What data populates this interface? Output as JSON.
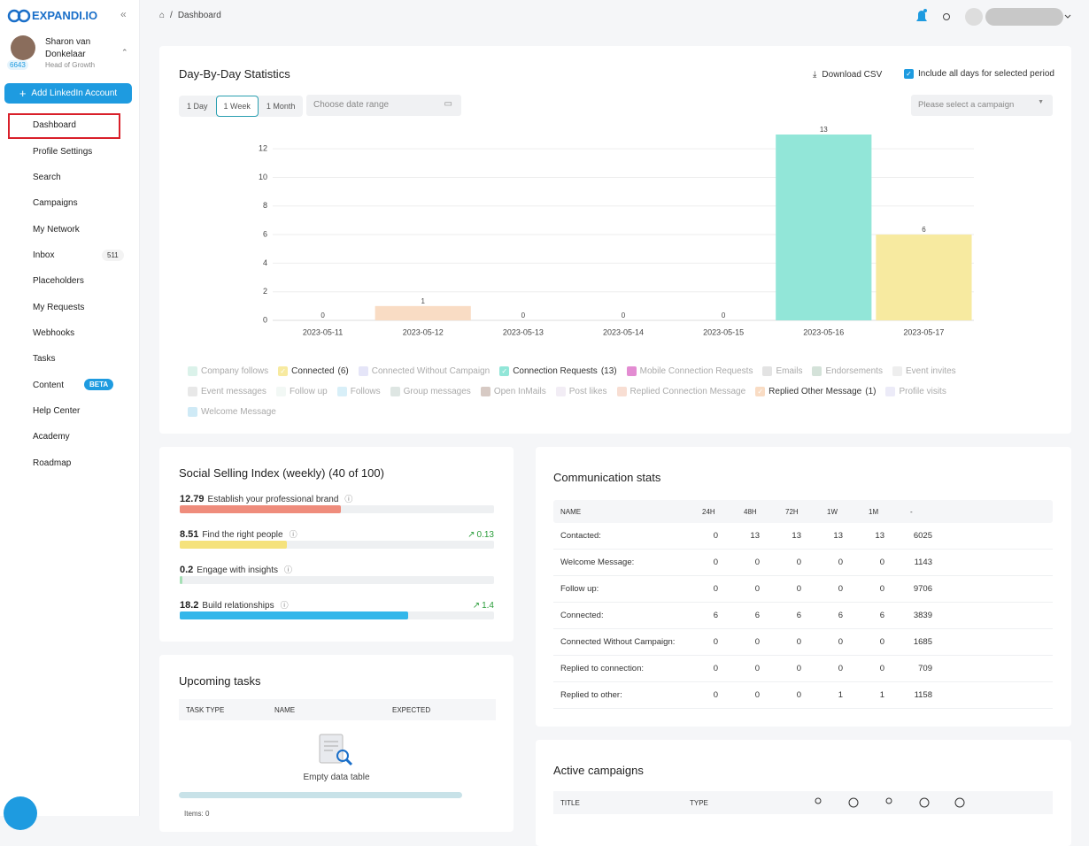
{
  "sidebar": {
    "logo": "EXPANDI.IO",
    "user": {
      "name": "Sharon van Donkelaar",
      "connections": "6643",
      "role": "Head of Growth"
    },
    "add_button": "Add LinkedIn Account",
    "nav": [
      {
        "label": "Dashboard"
      },
      {
        "label": "Profile Settings"
      },
      {
        "label": "Search"
      },
      {
        "label": "Campaigns"
      },
      {
        "label": "My Network"
      },
      {
        "label": "Inbox",
        "badge": "511"
      },
      {
        "label": "Placeholders"
      },
      {
        "label": "My Requests"
      },
      {
        "label": "Webhooks"
      },
      {
        "label": "Tasks"
      },
      {
        "label": "Content",
        "badge": "BETA"
      },
      {
        "label": "Help Center"
      },
      {
        "label": "Academy"
      },
      {
        "label": "Roadmap"
      }
    ]
  },
  "breadcrumb": {
    "current": "Dashboard"
  },
  "stats": {
    "title": "Day-By-Day Statistics",
    "download": "Download CSV",
    "include_all": "Include all days for selected period",
    "ranges": [
      "1 Day",
      "1 Week",
      "1 Month"
    ],
    "selected_range_index": 1,
    "date_placeholder": "Choose date range",
    "campaign_placeholder": "Please select a campaign"
  },
  "chart_data": {
    "type": "bar",
    "stacked": true,
    "categories": [
      "2023-05-11",
      "2023-05-12",
      "2023-05-13",
      "2023-05-14",
      "2023-05-15",
      "2023-05-16",
      "2023-05-17"
    ],
    "ylim": [
      0,
      13
    ],
    "yticks": [
      0,
      2,
      4,
      6,
      8,
      10,
      12
    ],
    "grid": true,
    "totals": [
      0,
      1,
      0,
      0,
      0,
      13,
      6
    ],
    "series": [
      {
        "name": "Company follows",
        "color": "#cfeee3"
      },
      {
        "name": "Connected",
        "count": "(6)",
        "color": "#f7eaa0",
        "values": [
          0,
          0,
          0,
          0,
          0,
          0,
          6
        ]
      },
      {
        "name": "Connected Without Campaign",
        "color": "#dcdcf5"
      },
      {
        "name": "Connection Requests",
        "count": "(13)",
        "color": "#92e6d8",
        "values": [
          0,
          0,
          0,
          0,
          0,
          13,
          0
        ]
      },
      {
        "name": "Mobile Connection Requests",
        "color": "#d966c3"
      },
      {
        "name": "Emails",
        "color": "#d9d9d9"
      },
      {
        "name": "Endorsements",
        "color": "#c5d8cc"
      },
      {
        "name": "Event invites",
        "color": "#e8e8e8"
      },
      {
        "name": "Event messages",
        "color": "#e0e0e0"
      },
      {
        "name": "Follow up",
        "color": "#eef6f2"
      },
      {
        "name": "Follows",
        "color": "#cbeaf5"
      },
      {
        "name": "Group messages",
        "color": "#d3ddda"
      },
      {
        "name": "Open InMails",
        "color": "#c9b8b0"
      },
      {
        "name": "Post likes",
        "color": "#ede7f2"
      },
      {
        "name": "Replied Connection Message",
        "color": "#f6d3c4"
      },
      {
        "name": "Replied Other Message",
        "count": "(1)",
        "color": "#f9dcc4",
        "values": [
          0,
          1,
          0,
          0,
          0,
          0,
          0
        ]
      },
      {
        "name": "Profile visits",
        "color": "#e6e4f5"
      },
      {
        "name": "Welcome Message",
        "color": "#bfe3f3"
      }
    ]
  },
  "ssi": {
    "title": "Social Selling Index (weekly) (40 of 100)",
    "xlim": [
      0,
      25
    ],
    "items": [
      {
        "value": 12.79,
        "label": "Establish your professional brand",
        "color": "#ef8c7c"
      },
      {
        "value": 8.51,
        "label": "Find the right people",
        "trend": "0.13",
        "color": "#f5e27c"
      },
      {
        "value": 0.2,
        "label": "Engage with insights",
        "color": "#a5e0b5"
      },
      {
        "value": 18.2,
        "label": "Build relationships",
        "trend": "1.4",
        "color": "#33b7ea"
      }
    ]
  },
  "communication": {
    "title": "Communication stats",
    "columns": [
      "NAME",
      "24H",
      "48H",
      "72H",
      "1W",
      "1M",
      "-"
    ],
    "rows": [
      [
        "Contacted:",
        0,
        13,
        13,
        13,
        13,
        6025
      ],
      [
        "Welcome Message:",
        0,
        0,
        0,
        0,
        0,
        1143
      ],
      [
        "Follow up:",
        0,
        0,
        0,
        0,
        0,
        9706
      ],
      [
        "Connected:",
        6,
        6,
        6,
        6,
        6,
        3839
      ],
      [
        "Connected Without Campaign:",
        0,
        0,
        0,
        0,
        0,
        1685
      ],
      [
        "Replied to connection:",
        0,
        0,
        0,
        0,
        0,
        709
      ],
      [
        "Replied to other:",
        0,
        0,
        0,
        1,
        1,
        1158
      ]
    ]
  },
  "tasks": {
    "title": "Upcoming tasks",
    "columns": [
      "TASK TYPE",
      "NAME",
      "EXPECTED"
    ],
    "empty": "Empty data table",
    "items": "Items: 0"
  },
  "campaigns": {
    "title": "Active campaigns",
    "columns": [
      "TITLE",
      "TYPE"
    ]
  }
}
